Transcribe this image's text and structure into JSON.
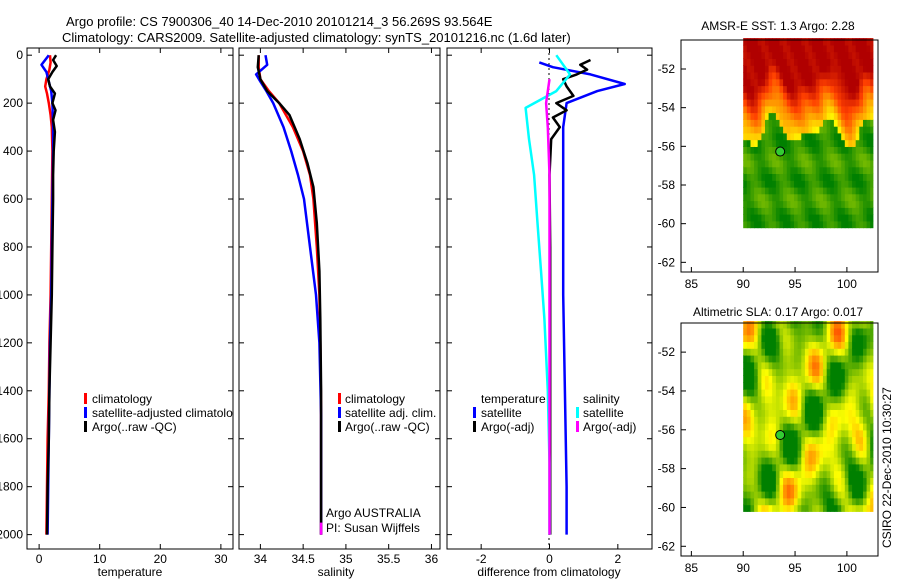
{
  "figure": {
    "title_line1": "Argo profile: CS 7900306_40 14-Dec-2010 20101214_3 56.269S 93.564E",
    "title_line2": "Climatology: CARS2009. Satellite-adjusted climatology: synTS_20101216.nc (1.6d later)",
    "side_stamp": "CSIRO 22-Dec-2010 10:30:27",
    "argo_label": "Argo AUSTRALIA",
    "pi_label": "PI: Susan Wijffels"
  },
  "colors": {
    "climatology": "#ff0000",
    "satellite": "#0000ff",
    "argo": "#000000",
    "sal_satellite": "#00ffff",
    "sal_argo": "#ff00ff",
    "marker_fill": "#33cc33"
  },
  "chart_data": [
    {
      "id": "temperature",
      "type": "line",
      "xlabel": "temperature",
      "xlim": [
        -2,
        32
      ],
      "ylim": [
        2060,
        -30
      ],
      "xticks": [
        0,
        10,
        20,
        30
      ],
      "yticks": [
        0,
        200,
        400,
        600,
        800,
        1000,
        1200,
        1400,
        1600,
        1800,
        2000
      ],
      "legend": [
        "climatology",
        "satellite-adjusted climatology",
        "Argo(..raw -QC)"
      ],
      "legend_display": [
        "climatology",
        "satellite-adjusted climatolo",
        "Argo(..raw -QC)"
      ],
      "series": [
        {
          "name": "climatology",
          "color": "#ff0000",
          "points": [
            [
              1.8,
              0
            ],
            [
              1.9,
              30
            ],
            [
              1.7,
              60
            ],
            [
              1.2,
              100
            ],
            [
              1.0,
              130
            ],
            [
              1.3,
              160
            ],
            [
              1.6,
              200
            ],
            [
              1.9,
              250
            ],
            [
              2.1,
              300
            ],
            [
              2.2,
              400
            ],
            [
              2.1,
              600
            ],
            [
              2.0,
              800
            ],
            [
              1.9,
              1000
            ],
            [
              1.7,
              1200
            ],
            [
              1.6,
              1400
            ],
            [
              1.4,
              1600
            ],
            [
              1.3,
              1800
            ],
            [
              1.2,
              2000
            ]
          ]
        },
        {
          "name": "satellite-adjusted climatology",
          "color": "#0000ff",
          "points": [
            [
              1.6,
              0
            ],
            [
              0.4,
              40
            ],
            [
              1.2,
              70
            ],
            [
              1.6,
              110
            ],
            [
              2.0,
              150
            ],
            [
              2.2,
              200
            ],
            [
              2.3,
              300
            ],
            [
              2.3,
              400
            ],
            [
              2.2,
              600
            ],
            [
              2.1,
              800
            ],
            [
              2.0,
              1000
            ],
            [
              1.8,
              1200
            ],
            [
              1.7,
              1400
            ],
            [
              1.6,
              1600
            ],
            [
              1.5,
              1800
            ],
            [
              1.4,
              2000
            ]
          ]
        },
        {
          "name": "Argo(..raw -QC)",
          "color": "#000000",
          "points": [
            [
              2.8,
              0
            ],
            [
              2.3,
              20
            ],
            [
              2.9,
              45
            ],
            [
              2.2,
              70
            ],
            [
              1.5,
              100
            ],
            [
              1.8,
              130
            ],
            [
              2.6,
              160
            ],
            [
              2.2,
              200
            ],
            [
              2.7,
              230
            ],
            [
              2.3,
              270
            ],
            [
              2.6,
              320
            ],
            [
              2.4,
              400
            ],
            [
              2.3,
              500
            ],
            [
              2.3,
              600
            ],
            [
              2.2,
              800
            ],
            [
              2.1,
              1000
            ],
            [
              1.9,
              1200
            ],
            [
              1.7,
              1400
            ],
            [
              1.6,
              1600
            ],
            [
              1.4,
              1800
            ],
            [
              1.3,
              2000
            ]
          ]
        }
      ]
    },
    {
      "id": "salinity",
      "type": "line",
      "xlabel": "salinity",
      "xlim": [
        33.75,
        36.1
      ],
      "ylim": [
        2060,
        -30
      ],
      "xticks": [
        34,
        34.5,
        35,
        35.5,
        36
      ],
      "xtick_labels": [
        "34",
        "34.5",
        "35",
        "35.5",
        "36"
      ],
      "legend": [
        "climatology",
        "satellite adj. clim.",
        "Argo(..raw -QC)"
      ],
      "series": [
        {
          "name": "climatology",
          "color": "#ff0000",
          "points": [
            [
              33.98,
              0
            ],
            [
              33.98,
              50
            ],
            [
              34.0,
              100
            ],
            [
              34.1,
              150
            ],
            [
              34.22,
              200
            ],
            [
              34.38,
              300
            ],
            [
              34.5,
              400
            ],
            [
              34.58,
              500
            ],
            [
              34.62,
              600
            ],
            [
              34.66,
              800
            ],
            [
              34.69,
              1000
            ],
            [
              34.7,
              1200
            ],
            [
              34.71,
              1500
            ],
            [
              34.71,
              1800
            ],
            [
              34.71,
              2000
            ]
          ]
        },
        {
          "name": "satellite adj. clim.",
          "color": "#0000ff",
          "points": [
            [
              34.06,
              0
            ],
            [
              34.08,
              40
            ],
            [
              33.95,
              80
            ],
            [
              34.0,
              110
            ],
            [
              34.07,
              150
            ],
            [
              34.15,
              200
            ],
            [
              34.27,
              300
            ],
            [
              34.36,
              400
            ],
            [
              34.44,
              500
            ],
            [
              34.51,
              600
            ],
            [
              34.58,
              800
            ],
            [
              34.65,
              1000
            ],
            [
              34.69,
              1200
            ],
            [
              34.71,
              1500
            ],
            [
              34.71,
              1800
            ],
            [
              34.71,
              2000
            ]
          ]
        },
        {
          "name": "Argo(..raw -QC)",
          "color": "#000000",
          "points": [
            [
              33.98,
              0
            ],
            [
              33.97,
              50
            ],
            [
              34.0,
              100
            ],
            [
              34.08,
              150
            ],
            [
              34.22,
              200
            ],
            [
              34.34,
              250
            ],
            [
              34.46,
              350
            ],
            [
              34.55,
              450
            ],
            [
              34.62,
              550
            ],
            [
              34.66,
              700
            ],
            [
              34.69,
              900
            ],
            [
              34.7,
              1100
            ],
            [
              34.71,
              1400
            ],
            [
              34.71,
              1700
            ],
            [
              34.71,
              2000
            ]
          ]
        },
        {
          "name": "salinity (Argo adj)",
          "color": "#ff00ff",
          "points": [
            [
              34.71,
              1950
            ],
            [
              34.71,
              2000
            ]
          ]
        }
      ]
    },
    {
      "id": "difference",
      "type": "line",
      "xlabel": "difference from climatology",
      "xlim": [
        -3.0,
        3.0
      ],
      "ylim": [
        2060,
        -30
      ],
      "xticks": [
        -2,
        0,
        2
      ],
      "legend_headers": [
        "temperature",
        "salinity"
      ],
      "legend": [
        "satellite",
        "Argo(-adj)",
        "satellite",
        "Argo(-adj)"
      ],
      "series": [
        {
          "name": "temperature satellite",
          "color": "#0000ff",
          "points": [
            [
              -0.3,
              30
            ],
            [
              0.1,
              50
            ],
            [
              1.2,
              80
            ],
            [
              2.2,
              120
            ],
            [
              1.4,
              150
            ],
            [
              0.5,
              200
            ],
            [
              0.4,
              300
            ],
            [
              0.4,
              600
            ],
            [
              0.4,
              1000
            ],
            [
              0.45,
              1400
            ],
            [
              0.5,
              1800
            ],
            [
              0.5,
              2000
            ]
          ]
        },
        {
          "name": "temperature Argo(-adj)",
          "color": "#000000",
          "points": [
            [
              1.2,
              20
            ],
            [
              0.9,
              40
            ],
            [
              1.1,
              60
            ],
            [
              0.8,
              80
            ],
            [
              0.4,
              100
            ],
            [
              0.5,
              130
            ],
            [
              0.7,
              170
            ],
            [
              0.2,
              200
            ],
            [
              0.5,
              230
            ],
            [
              0.1,
              260
            ],
            [
              0.3,
              300
            ],
            [
              0.05,
              350
            ],
            [
              0.0,
              500
            ],
            [
              0.02,
              800
            ],
            [
              0.02,
              1200
            ],
            [
              0.02,
              1600
            ],
            [
              0.02,
              2000
            ]
          ]
        },
        {
          "name": "salinity satellite",
          "color": "#00ffff",
          "points": [
            [
              0.2,
              0
            ],
            [
              0.6,
              80
            ],
            [
              0.2,
              150
            ],
            [
              -0.7,
              220
            ],
            [
              -0.6,
              350
            ],
            [
              -0.45,
              500
            ],
            [
              -0.35,
              700
            ],
            [
              -0.25,
              900
            ],
            [
              -0.15,
              1100
            ],
            [
              -0.05,
              1400
            ],
            [
              0.0,
              1700
            ],
            [
              0.0,
              2000
            ]
          ]
        },
        {
          "name": "salinity Argo(-adj)",
          "color": "#ff00ff",
          "points": [
            [
              0.0,
              100
            ],
            [
              -0.1,
              200
            ],
            [
              -0.05,
              300
            ],
            [
              0.0,
              500
            ],
            [
              0.0,
              800
            ],
            [
              0.0,
              1200
            ],
            [
              0.0,
              1600
            ],
            [
              0.0,
              2000
            ]
          ]
        }
      ]
    },
    {
      "id": "amsre-sst",
      "type": "heatmap",
      "title": "AMSR-E SST: 1.3 Argo: 2.28",
      "xlim": [
        84,
        103
      ],
      "ylim": [
        -62.5,
        -50.5
      ],
      "xticks": [
        85,
        90,
        95,
        100
      ],
      "yticks": [
        -52,
        -54,
        -56,
        -58,
        -60,
        -62
      ],
      "region": {
        "lon": [
          90,
          102.5
        ],
        "lat": [
          -60.2,
          -50.5
        ]
      },
      "float_position": {
        "lon": 93.564,
        "lat": -56.269
      },
      "colorscale": [
        "#008000",
        "#80c000",
        "#ffff00",
        "#ffa000",
        "#ff4000",
        "#b00000"
      ]
    },
    {
      "id": "altimetric-sla",
      "type": "heatmap",
      "title": "Altimetric SLA: 0.17 Argo: 0.017",
      "xlim": [
        84,
        103
      ],
      "ylim": [
        -62.5,
        -50.5
      ],
      "xticks": [
        85,
        90,
        95,
        100
      ],
      "yticks": [
        -52,
        -54,
        -56,
        -58,
        -60,
        -62
      ],
      "region": {
        "lon": [
          90,
          102.5
        ],
        "lat": [
          -60.2,
          -50.5
        ]
      },
      "float_position": {
        "lon": 93.564,
        "lat": -56.269
      },
      "colorscale": [
        "#008000",
        "#80c000",
        "#ffff00",
        "#ffa000",
        "#ff4000",
        "#b00000"
      ]
    }
  ]
}
